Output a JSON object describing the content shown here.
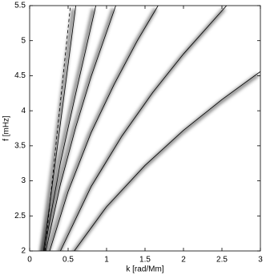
{
  "chart_data": {
    "type": "line",
    "xlabel": "k [rad/Mm]",
    "ylabel": "f [mHz]",
    "xlim": [
      0,
      3
    ],
    "ylim": [
      2,
      5.5
    ],
    "xticks": [
      0,
      0.5,
      1,
      1.5,
      2,
      2.5,
      3
    ],
    "yticks": [
      2,
      2.5,
      3,
      3.5,
      4,
      4.5,
      5,
      5.5
    ],
    "series": [
      {
        "color": "#000000",
        "dashed": false,
        "x": [
          0.58,
          1,
          1.5,
          2,
          2.5,
          3
        ],
        "values": [
          2.0,
          2.63,
          3.22,
          3.72,
          4.16,
          4.56
        ]
      },
      {
        "color": "#000000",
        "dashed": false,
        "x": [
          0.4,
          0.8,
          1.2,
          1.6,
          2.0,
          2.56
        ],
        "values": [
          2.0,
          2.92,
          3.64,
          4.26,
          4.81,
          5.5
        ]
      },
      {
        "color": "#000000",
        "dashed": false,
        "x": [
          0.26,
          0.5,
          0.8,
          1.1,
          1.4,
          1.67
        ],
        "values": [
          2.0,
          2.85,
          3.69,
          4.38,
          5.0,
          5.5
        ]
      },
      {
        "color": "#000000",
        "dashed": false,
        "x": [
          0.21,
          0.4,
          0.6,
          0.8,
          1.12
        ],
        "values": [
          2.0,
          2.95,
          3.77,
          4.49,
          5.5
        ]
      },
      {
        "color": "#000000",
        "dashed": false,
        "x": [
          0.19,
          0.4,
          0.6,
          0.86
        ],
        "values": [
          2.0,
          3.26,
          4.25,
          5.5
        ]
      },
      {
        "color": "#000000",
        "dashed": false,
        "x": [
          0.18,
          0.35,
          0.6
        ],
        "values": [
          2.0,
          3.4,
          5.5
        ]
      },
      {
        "color": "#000000",
        "dashed": true,
        "x": [
          0.2,
          0.35,
          0.53
        ],
        "values": [
          2.0,
          3.6,
          5.5
        ]
      }
    ]
  }
}
